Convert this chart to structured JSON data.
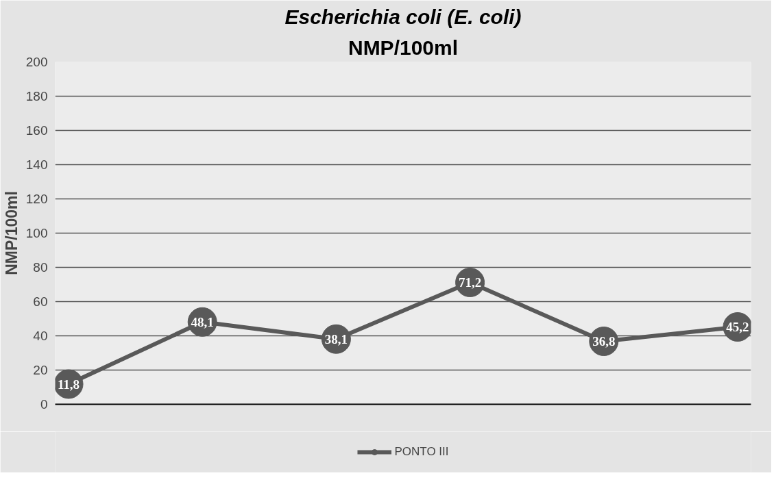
{
  "chart_data": {
    "type": "line",
    "title": "Escherichia coli (E. coli)",
    "subtitle": "NMP/100ml",
    "ylabel": "NMP/100ml",
    "categories": [
      null,
      null,
      null,
      null,
      null,
      null
    ],
    "series": [
      {
        "name": "PONTO III",
        "color": "#595959",
        "values": [
          11.8,
          48.1,
          38.1,
          71.2,
          36.8,
          45.2
        ],
        "value_labels": [
          "11,8",
          "48,1",
          "38,1",
          "71,2",
          "36,8",
          "45,2"
        ]
      }
    ],
    "ylim": [
      0,
      200
    ],
    "yticks": [
      0,
      20,
      40,
      60,
      80,
      100,
      120,
      140,
      160,
      180,
      200
    ],
    "grid": "y",
    "legend": "bottom",
    "marker": "circle",
    "line_style": "solid",
    "tick_labels": "y"
  }
}
